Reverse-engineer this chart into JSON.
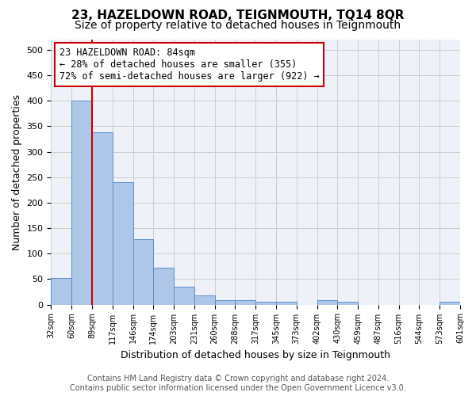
{
  "title": "23, HAZELDOWN ROAD, TEIGNMOUTH, TQ14 8QR",
  "subtitle": "Size of property relative to detached houses in Teignmouth",
  "xlabel": "Distribution of detached houses by size in Teignmouth",
  "ylabel": "Number of detached properties",
  "bar_labels": [
    "32sqm",
    "60sqm",
    "89sqm",
    "117sqm",
    "146sqm",
    "174sqm",
    "203sqm",
    "231sqm",
    "260sqm",
    "288sqm",
    "317sqm",
    "345sqm",
    "373sqm",
    "402sqm",
    "430sqm",
    "459sqm",
    "487sqm",
    "516sqm",
    "544sqm",
    "573sqm",
    "601sqm"
  ],
  "bar_heights": [
    52,
    400,
    338,
    240,
    128,
    72,
    35,
    18,
    8,
    8,
    5,
    5,
    0,
    8,
    5,
    0,
    0,
    0,
    0,
    5
  ],
  "bar_color": "#aec6e8",
  "bar_edge_color": "#5b8fc9",
  "red_line_color": "#cc0000",
  "annotation_text": "23 HAZELDOWN ROAD: 84sqm\n← 28% of detached houses are smaller (355)\n72% of semi-detached houses are larger (922) →",
  "annotation_box_color": "#ffffff",
  "annotation_box_edge_color": "#cc0000",
  "ylim": [
    0,
    520
  ],
  "yticks": [
    0,
    50,
    100,
    150,
    200,
    250,
    300,
    350,
    400,
    450,
    500
  ],
  "grid_color": "#cccccc",
  "background_color": "#eef2f8",
  "footer_text": "Contains HM Land Registry data © Crown copyright and database right 2024.\nContains public sector information licensed under the Open Government Licence v3.0.",
  "title_fontsize": 11,
  "subtitle_fontsize": 10,
  "xlabel_fontsize": 9,
  "ylabel_fontsize": 9,
  "annotation_fontsize": 8.5,
  "footer_fontsize": 7
}
